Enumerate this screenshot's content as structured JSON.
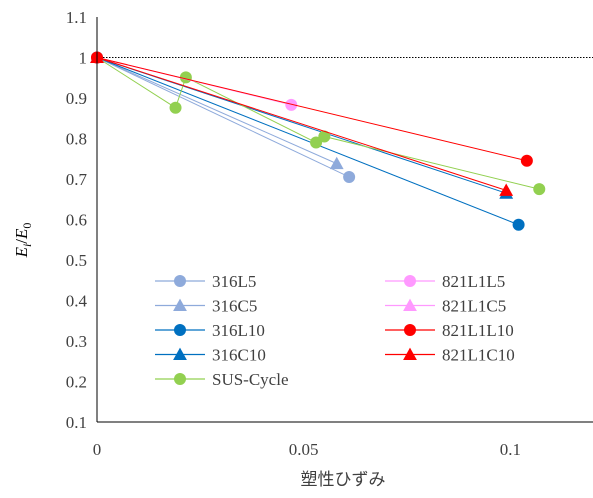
{
  "chart_data": {
    "type": "scatter",
    "title": "",
    "xlabel": "塑性ひずみ",
    "ylabel": "E_i/E_0",
    "ylabel_parts": [
      "E",
      "i",
      "/",
      "E",
      "0"
    ],
    "xlim": [
      0,
      0.12
    ],
    "ylim": [
      0.1,
      1.1
    ],
    "xticks": [
      0,
      0.05,
      0.1
    ],
    "xtick_labels": [
      "0",
      "0.05",
      "0.1"
    ],
    "yticks": [
      0.1,
      0.2,
      0.3,
      0.4,
      0.5,
      0.6,
      0.7,
      0.8,
      0.9,
      1.0,
      1.1
    ],
    "ytick_labels": [
      "0.1",
      "0.2",
      "0.3",
      "0.4",
      "0.5",
      "0.6",
      "0.7",
      "0.8",
      "0.9",
      "1",
      "1.1"
    ],
    "grid": false,
    "reference_line": {
      "y": 1.0,
      "style": "dotted"
    },
    "legend_position": "lower-left",
    "series": [
      {
        "name": "316L5",
        "marker": "circle",
        "color": "#8eaadb",
        "points": [
          [
            0,
            1.0
          ],
          [
            0.061,
            0.705
          ]
        ]
      },
      {
        "name": "316C5",
        "marker": "triangle",
        "color": "#8eaadb",
        "points": [
          [
            0,
            1.0
          ],
          [
            0.058,
            0.738
          ]
        ]
      },
      {
        "name": "316L10",
        "marker": "circle",
        "color": "#0070c0",
        "points": [
          [
            0,
            1.0
          ],
          [
            0.102,
            0.587
          ]
        ]
      },
      {
        "name": "316C10",
        "marker": "triangle",
        "color": "#0070c0",
        "points": [
          [
            0,
            1.0
          ],
          [
            0.099,
            0.665
          ]
        ]
      },
      {
        "name": "SUS-Cycle",
        "marker": "circle",
        "color": "#92d050",
        "points": [
          [
            0,
            1.0
          ],
          [
            0.019,
            0.876
          ],
          [
            0.0215,
            0.951
          ],
          [
            0.053,
            0.79
          ],
          [
            0.055,
            0.805
          ],
          [
            0.107,
            0.675
          ]
        ]
      },
      {
        "name": "821L1L5",
        "marker": "circle",
        "color": "#ff99ff",
        "points": [
          [
            0,
            1.0
          ],
          [
            0.047,
            0.883
          ]
        ]
      },
      {
        "name": "821L1C5",
        "marker": "triangle",
        "color": "#ff99ff",
        "points": [
          [
            0,
            1.0
          ]
        ]
      },
      {
        "name": "821L1L10",
        "marker": "circle",
        "color": "#ff0000",
        "points": [
          [
            0,
            1.0
          ],
          [
            0.104,
            0.745
          ]
        ]
      },
      {
        "name": "821L1C10",
        "marker": "triangle",
        "color": "#ff0000",
        "points": [
          [
            0,
            1.0
          ],
          [
            0.099,
            0.672
          ]
        ]
      }
    ]
  }
}
